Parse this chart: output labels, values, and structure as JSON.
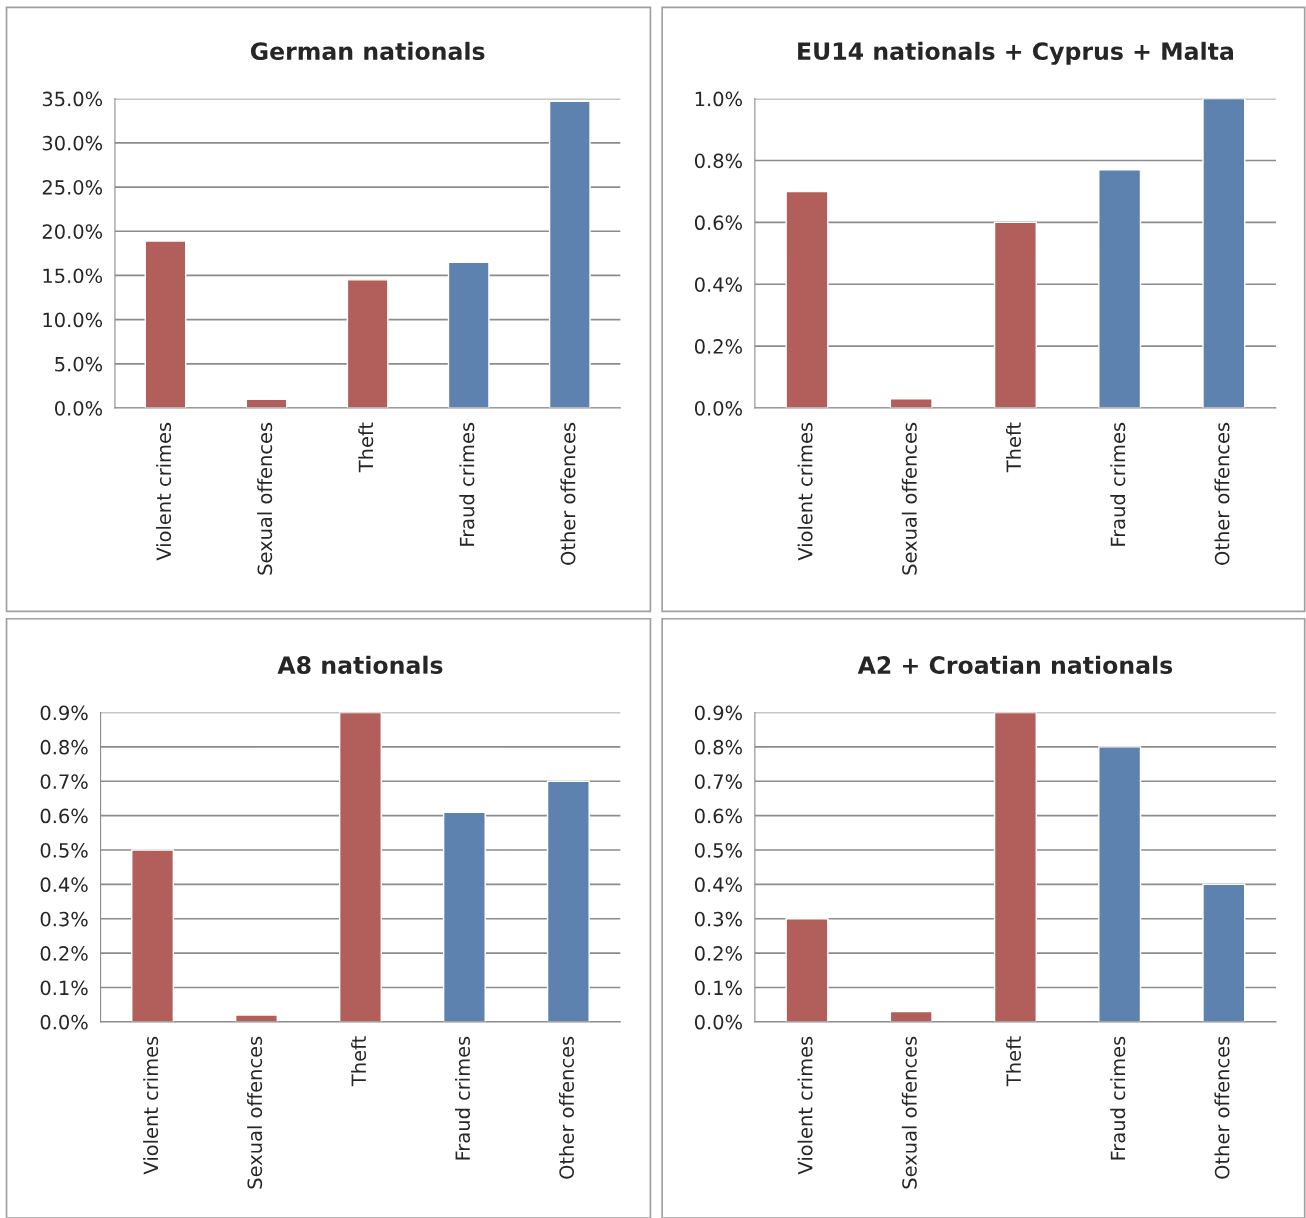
{
  "chart_data": [
    {
      "type": "bar",
      "title": "German nationals",
      "categories": [
        "Violent crimes",
        "Sexual offences",
        "Theft",
        "Fraud crimes",
        "Other offences"
      ],
      "values": [
        18.9,
        1.0,
        14.5,
        16.5,
        34.7
      ],
      "colors": [
        "#c0504d",
        "#c0504d",
        "#c0504d",
        "#4f81bd",
        "#4f81bd"
      ],
      "ylim": [
        0,
        35
      ],
      "yticks": [
        {
          "value": 0,
          "label": "0.0%"
        },
        {
          "value": 5,
          "label": "5.0%"
        },
        {
          "value": 10,
          "label": "10.0%"
        },
        {
          "value": 15,
          "label": "15.0%"
        },
        {
          "value": 20,
          "label": "20.0%"
        },
        {
          "value": 25,
          "label": "25.0%"
        },
        {
          "value": 30,
          "label": "30.0%"
        },
        {
          "value": 35,
          "label": "35.0%"
        }
      ],
      "grid": "y",
      "legend": false
    },
    {
      "type": "bar",
      "title": "EU14 nationals + Cyprus + Malta",
      "categories": [
        "Violent crimes",
        "Sexual offences",
        "Theft",
        "Fraud crimes",
        "Other offences"
      ],
      "values": [
        0.7,
        0.03,
        0.6,
        0.77,
        1.0
      ],
      "colors": [
        "#c0504d",
        "#c0504d",
        "#c0504d",
        "#4f81bd",
        "#4f81bd"
      ],
      "ylim": [
        0,
        1.0
      ],
      "yticks": [
        {
          "value": 0,
          "label": "0.0%"
        },
        {
          "value": 0.2,
          "label": "0.2%"
        },
        {
          "value": 0.4,
          "label": "0.4%"
        },
        {
          "value": 0.6,
          "label": "0.6%"
        },
        {
          "value": 0.8,
          "label": "0.8%"
        },
        {
          "value": 1.0,
          "label": "1.0%"
        }
      ],
      "grid": "y",
      "legend": false
    },
    {
      "type": "bar",
      "title": "A8 nationals",
      "categories": [
        "Violent crimes",
        "Sexual offences",
        "Theft",
        "Fraud crimes",
        "Other offences"
      ],
      "values": [
        0.5,
        0.02,
        0.9,
        0.61,
        0.7
      ],
      "colors": [
        "#c0504d",
        "#c0504d",
        "#c0504d",
        "#4f81bd",
        "#4f81bd"
      ],
      "ylim": [
        0,
        0.9
      ],
      "yticks": [
        {
          "value": 0,
          "label": "0.0%"
        },
        {
          "value": 0.1,
          "label": "0.1%"
        },
        {
          "value": 0.2,
          "label": "0.2%"
        },
        {
          "value": 0.3,
          "label": "0.3%"
        },
        {
          "value": 0.4,
          "label": "0.4%"
        },
        {
          "value": 0.5,
          "label": "0.5%"
        },
        {
          "value": 0.6,
          "label": "0.6%"
        },
        {
          "value": 0.7,
          "label": "0.7%"
        },
        {
          "value": 0.8,
          "label": "0.8%"
        },
        {
          "value": 0.9,
          "label": "0.9%"
        }
      ],
      "grid": "y",
      "legend": false
    },
    {
      "type": "bar",
      "title": "A2 + Croatian nationals",
      "categories": [
        "Violent crimes",
        "Sexual offences",
        "Theft",
        "Fraud crimes",
        "Other offences"
      ],
      "values": [
        0.3,
        0.03,
        0.9,
        0.8,
        0.4
      ],
      "colors": [
        "#c0504d",
        "#c0504d",
        "#c0504d",
        "#4f81bd",
        "#4f81bd"
      ],
      "ylim": [
        0,
        0.9
      ],
      "yticks": [
        {
          "value": 0,
          "label": "0.0%"
        },
        {
          "value": 0.1,
          "label": "0.1%"
        },
        {
          "value": 0.2,
          "label": "0.2%"
        },
        {
          "value": 0.3,
          "label": "0.3%"
        },
        {
          "value": 0.4,
          "label": "0.4%"
        },
        {
          "value": 0.5,
          "label": "0.5%"
        },
        {
          "value": 0.6,
          "label": "0.6%"
        },
        {
          "value": 0.7,
          "label": "0.7%"
        },
        {
          "value": 0.8,
          "label": "0.8%"
        },
        {
          "value": 0.9,
          "label": "0.9%"
        }
      ],
      "grid": "y",
      "legend": false
    }
  ]
}
